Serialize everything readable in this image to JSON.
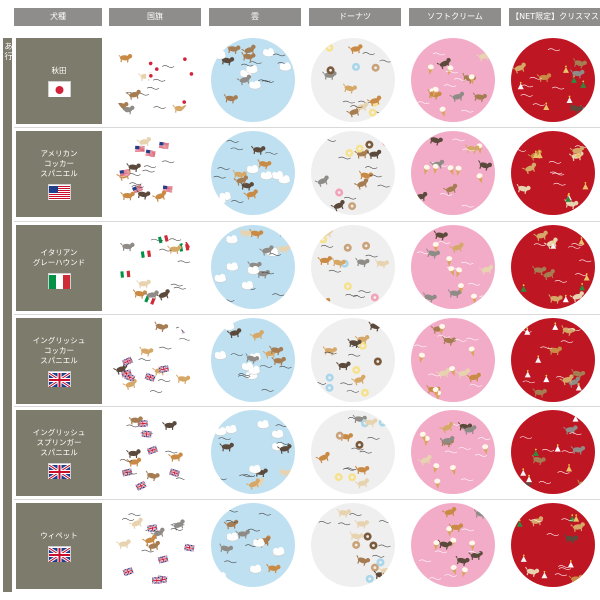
{
  "header": {
    "breed_col": "犬種",
    "columns": [
      "国旗",
      "雲",
      "ドーナツ",
      "ソフトクリーム",
      "【NET限定】クリスマス"
    ]
  },
  "side_tab": "あ行",
  "colors": {
    "header_bg": "#8e8d8b",
    "breed_bg": "#7d7b6b",
    "flag_pattern_bg": "#ffffff",
    "cloud_pattern_bg": "#bfe0f1",
    "donut_pattern_bg": "#efefef",
    "softcream_pattern_bg": "#f2acc8",
    "christmas_pattern_bg": "#bf1624"
  },
  "rows": [
    {
      "name": "秋田",
      "flag": "japan-flag-icon"
    },
    {
      "name": "アメリカン\nコッカー\nスパニエル",
      "flag": "usa-flag-icon"
    },
    {
      "name": "イタリアン\nグレーハウンド",
      "flag": "italy-flag-icon"
    },
    {
      "name": "イングリッシュ\nコッカー\nスパニエル",
      "flag": "uk-flag-icon"
    },
    {
      "name": "イングリッシュ\nスプリンガー\nスパニエル",
      "flag": "uk-flag-icon"
    },
    {
      "name": "ウィペット",
      "flag": "uk-flag-icon"
    }
  ]
}
